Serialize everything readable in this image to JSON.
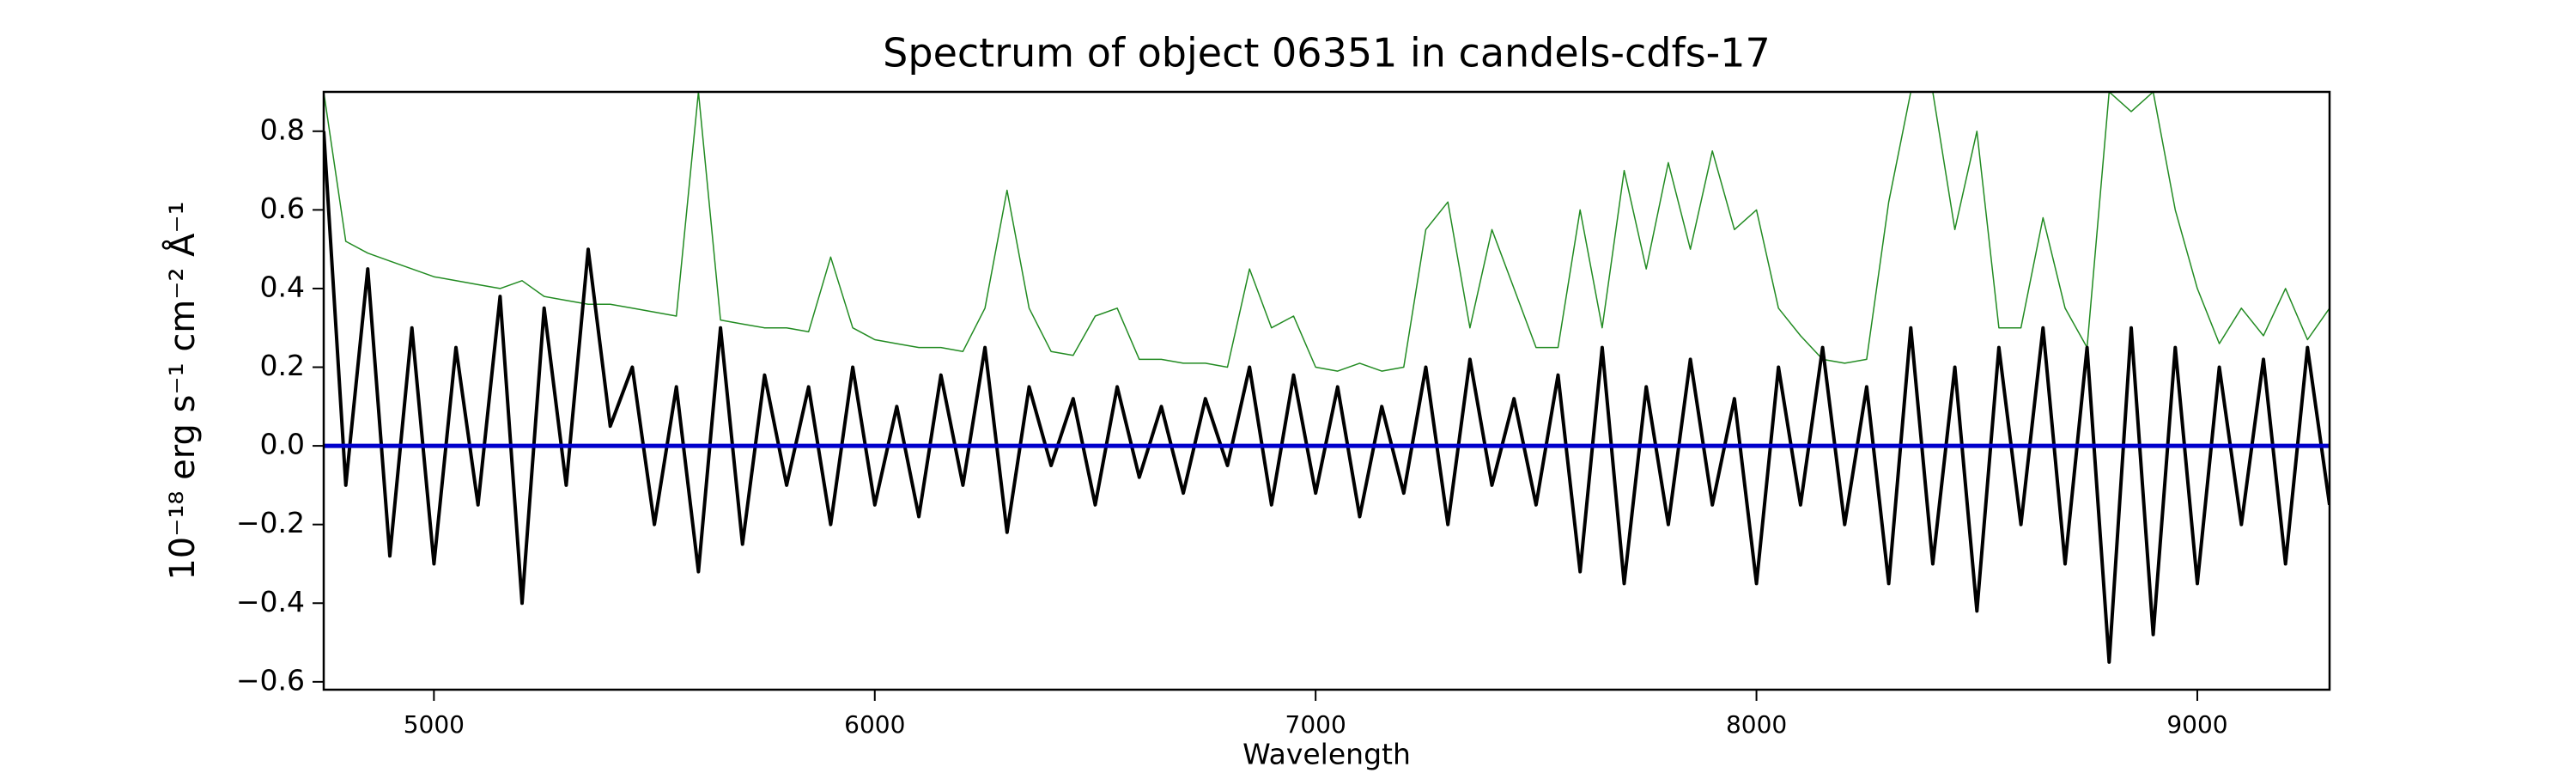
{
  "chart_data": {
    "type": "line",
    "title": "Spectrum of object 06351 in candels-cdfs-17",
    "xlabel": "Wavelength",
    "ylabel": "10⁻¹⁸ erg s⁻¹ cm⁻² Å⁻¹",
    "x": [
      4750,
      4800,
      4850,
      4900,
      4950,
      5000,
      5050,
      5100,
      5150,
      5200,
      5250,
      5300,
      5350,
      5400,
      5450,
      5500,
      5550,
      5600,
      5650,
      5700,
      5750,
      5800,
      5850,
      5900,
      5950,
      6000,
      6050,
      6100,
      6150,
      6200,
      6250,
      6300,
      6350,
      6400,
      6450,
      6500,
      6550,
      6600,
      6650,
      6700,
      6750,
      6800,
      6850,
      6900,
      6950,
      7000,
      7050,
      7100,
      7150,
      7200,
      7250,
      7300,
      7350,
      7400,
      7450,
      7500,
      7550,
      7600,
      7650,
      7700,
      7750,
      7800,
      7850,
      7900,
      7950,
      8000,
      8050,
      8100,
      8150,
      8200,
      8250,
      8300,
      8350,
      8400,
      8450,
      8500,
      8550,
      8600,
      8650,
      8700,
      8750,
      8800,
      8850,
      8900,
      8950,
      9000,
      9050,
      9100,
      9150,
      9200,
      9250,
      9300
    ],
    "series": [
      {
        "color": "#228b22",
        "width": 1.5,
        "values": [
          0.9,
          0.52,
          0.49,
          0.47,
          0.45,
          0.43,
          0.42,
          0.41,
          0.4,
          0.42,
          0.38,
          0.37,
          0.36,
          0.36,
          0.35,
          0.34,
          0.33,
          0.9,
          0.32,
          0.31,
          0.3,
          0.3,
          0.29,
          0.48,
          0.3,
          0.27,
          0.26,
          0.25,
          0.25,
          0.24,
          0.35,
          0.65,
          0.35,
          0.24,
          0.23,
          0.33,
          0.35,
          0.22,
          0.22,
          0.21,
          0.21,
          0.2,
          0.45,
          0.3,
          0.33,
          0.2,
          0.19,
          0.21,
          0.19,
          0.2,
          0.55,
          0.62,
          0.3,
          0.55,
          0.4,
          0.25,
          0.25,
          0.6,
          0.3,
          0.7,
          0.45,
          0.72,
          0.5,
          0.75,
          0.55,
          0.6,
          0.35,
          0.28,
          0.22,
          0.21,
          0.22,
          0.62,
          0.9,
          0.9,
          0.55,
          0.8,
          0.3,
          0.3,
          0.58,
          0.35,
          0.25,
          0.9,
          0.85,
          0.9,
          0.6,
          0.4,
          0.26,
          0.35,
          0.28,
          0.4,
          0.27,
          0.35
        ]
      },
      {
        "color": "#000000",
        "width": 4,
        "values": [
          0.8,
          -0.1,
          0.45,
          -0.28,
          0.3,
          -0.3,
          0.25,
          -0.15,
          0.38,
          -0.4,
          0.35,
          -0.1,
          0.5,
          0.05,
          0.2,
          -0.2,
          0.15,
          -0.32,
          0.3,
          -0.25,
          0.18,
          -0.1,
          0.15,
          -0.2,
          0.2,
          -0.15,
          0.1,
          -0.18,
          0.18,
          -0.1,
          0.25,
          -0.22,
          0.15,
          -0.05,
          0.12,
          -0.15,
          0.15,
          -0.08,
          0.1,
          -0.12,
          0.12,
          -0.05,
          0.2,
          -0.15,
          0.18,
          -0.12,
          0.15,
          -0.18,
          0.1,
          -0.12,
          0.2,
          -0.2,
          0.22,
          -0.1,
          0.12,
          -0.15,
          0.18,
          -0.32,
          0.25,
          -0.35,
          0.15,
          -0.2,
          0.22,
          -0.15,
          0.12,
          -0.35,
          0.2,
          -0.15,
          0.25,
          -0.2,
          0.15,
          -0.35,
          0.3,
          -0.3,
          0.2,
          -0.42,
          0.25,
          -0.2,
          0.3,
          -0.3,
          0.25,
          -0.55,
          0.3,
          -0.48,
          0.25,
          -0.35,
          0.2,
          -0.2,
          0.22,
          -0.3,
          0.25,
          -0.15
        ]
      },
      {
        "color": "#0000cc",
        "width": 5,
        "x": [
          4750,
          9300
        ],
        "values": [
          0,
          0
        ]
      }
    ],
    "xlim": [
      4750,
      9300
    ],
    "ylim": [
      -0.62,
      0.9
    ],
    "xticks": [
      5000,
      6000,
      7000,
      8000,
      9000
    ],
    "yticks": [
      {
        "value": -0.6,
        "label": "−0.6"
      },
      {
        "value": -0.4,
        "label": "−0.4"
      },
      {
        "value": -0.2,
        "label": "−0.2"
      },
      {
        "value": 0,
        "label": "0.0"
      },
      0.2,
      0.4,
      0.6,
      0.8
    ]
  }
}
